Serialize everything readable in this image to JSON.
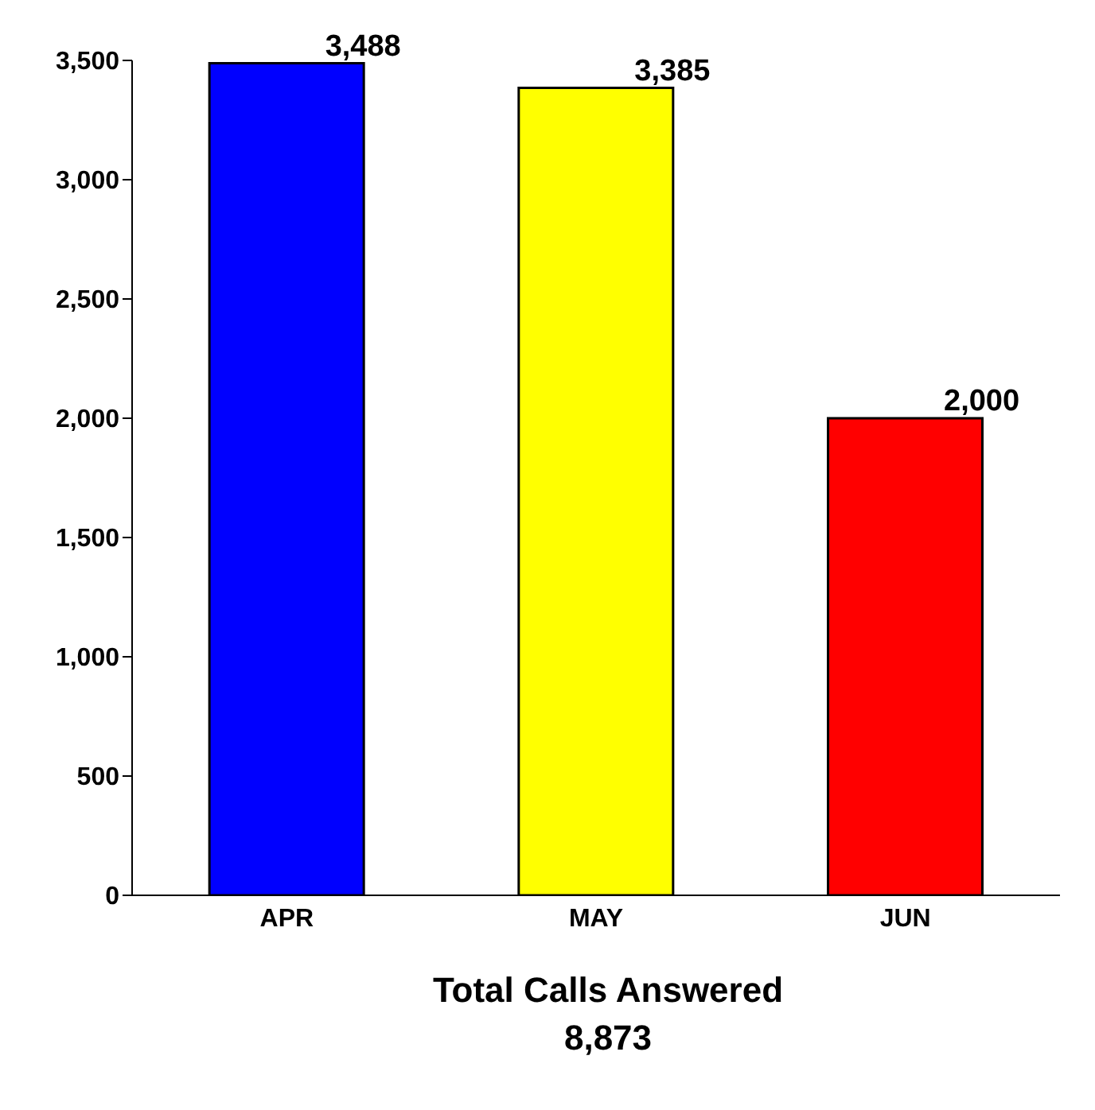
{
  "chart_data": {
    "type": "bar",
    "xlabel": "Total Calls Answered 8,873",
    "categories": [
      "APR",
      "MAY",
      "JUN"
    ],
    "values": [
      3488,
      3385,
      2000
    ],
    "colors": [
      "#0000ff",
      "#ffff00",
      "#ff0000"
    ],
    "value_labels": [
      "3,488",
      "3,385",
      "2,000"
    ],
    "ylim": [
      0,
      3500
    ],
    "yticks": [
      {
        "value": 0,
        "label": "0"
      },
      {
        "value": 500,
        "label": "500"
      },
      {
        "value": 1000,
        "label": "1,000"
      },
      {
        "value": 1500,
        "label": "1,500"
      },
      {
        "value": 2000,
        "label": "2,000"
      },
      {
        "value": 2500,
        "label": "2,500"
      },
      {
        "value": 3000,
        "label": "3,000"
      },
      {
        "value": 3500,
        "label": "3,500"
      }
    ],
    "grid": false,
    "legend": false
  }
}
